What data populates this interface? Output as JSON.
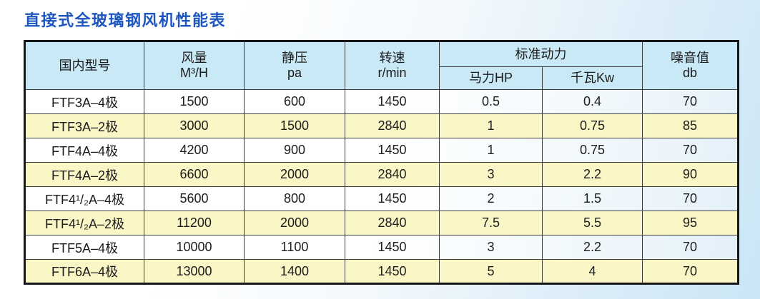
{
  "page": {
    "title": "直接式全玻璃钢风机性能表",
    "title_color": "#1e56bf",
    "background_gradient": [
      "#ffffff",
      "#cbe6f6"
    ]
  },
  "table": {
    "header": {
      "model": "国内型号",
      "airflow_line1": "风量",
      "airflow_line2": "M³/H",
      "pressure_line1": "静压",
      "pressure_line2": "pa",
      "speed_line1": "转速",
      "speed_line2": "r/min",
      "standard_power": "标准动力",
      "horsepower": "马力HP",
      "kilowatt": "千瓦Kw",
      "noise_line1": "噪音值",
      "noise_line2": "db"
    },
    "colors": {
      "header_bg": "#c9e9f7",
      "row_highlight": "#faf6c5",
      "row_plain": "#ffffff",
      "outer_border": "#161616",
      "inner_border": "#3d3d3d"
    },
    "rows": [
      {
        "model": "FTF3A–4极",
        "airflow": "1500",
        "pressure": "600",
        "speed": "1450",
        "hp": "0.5",
        "kw": "0.4",
        "noise": "70",
        "highlight": false
      },
      {
        "model": "FTF3A–2极",
        "airflow": "3000",
        "pressure": "1500",
        "speed": "2840",
        "hp": "1",
        "kw": "0.75",
        "noise": "85",
        "highlight": true
      },
      {
        "model": "FTF4A–4极",
        "airflow": "4200",
        "pressure": "900",
        "speed": "1450",
        "hp": "1",
        "kw": "0.75",
        "noise": "70",
        "highlight": false
      },
      {
        "model": "FTF4A–2极",
        "airflow": "6600",
        "pressure": "2000",
        "speed": "2840",
        "hp": "3",
        "kw": "2.2",
        "noise": "90",
        "highlight": true
      },
      {
        "model": "FTF4¹/₂A–4极",
        "airflow": "5600",
        "pressure": "800",
        "speed": "1450",
        "hp": "2",
        "kw": "1.5",
        "noise": "70",
        "highlight": false
      },
      {
        "model": "FTF4¹/₂A–2极",
        "airflow": "11200",
        "pressure": "2000",
        "speed": "2840",
        "hp": "7.5",
        "kw": "5.5",
        "noise": "95",
        "highlight": true
      },
      {
        "model": "FTF5A–4极",
        "airflow": "10000",
        "pressure": "1100",
        "speed": "1450",
        "hp": "3",
        "kw": "2.2",
        "noise": "70",
        "highlight": false
      },
      {
        "model": "FTF6A–4极",
        "airflow": "13000",
        "pressure": "1400",
        "speed": "1450",
        "hp": "5",
        "kw": "4",
        "noise": "70",
        "highlight": true
      }
    ]
  }
}
